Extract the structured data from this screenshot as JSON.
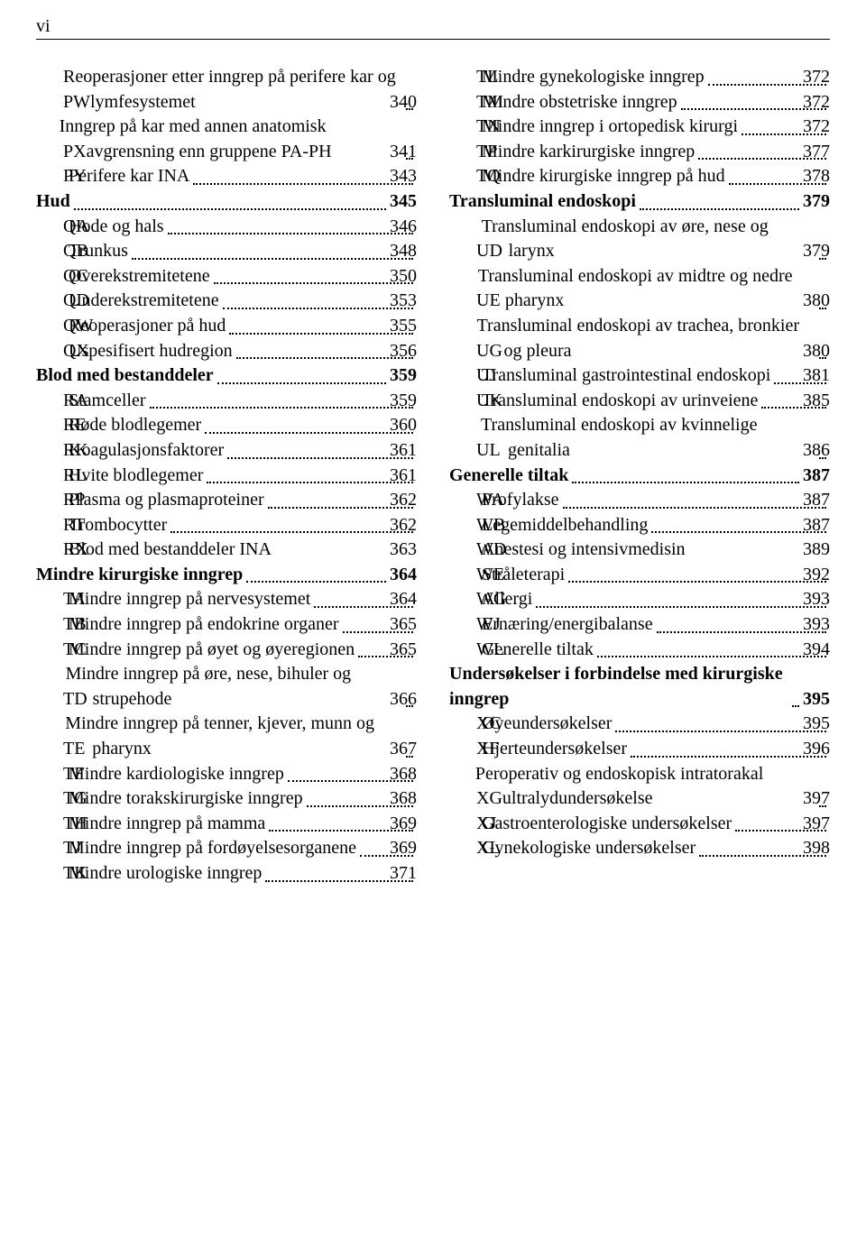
{
  "page_label": "vi",
  "left_column": [
    {
      "type": "sub",
      "code": "PW",
      "label": "Reoperasjoner etter inngrep på perifere kar og lymfesystemet",
      "page": "340"
    },
    {
      "type": "sub",
      "code": "PX",
      "label": "Inngrep på kar med annen anatomisk avgrensning enn gruppene PA-PH",
      "page": "341"
    },
    {
      "type": "sub",
      "code": "PY",
      "label": "Perifere kar INA",
      "page": "343"
    },
    {
      "type": "heading",
      "label": "Hud",
      "page": "345"
    },
    {
      "type": "sub",
      "code": "QA",
      "label": "Hode og hals",
      "page": "346"
    },
    {
      "type": "sub",
      "code": "QB",
      "label": "Trunkus",
      "page": "348"
    },
    {
      "type": "sub",
      "code": "QC",
      "label": "Overekstremitetene",
      "page": "350"
    },
    {
      "type": "sub",
      "code": "QD",
      "label": "Underekstremitetene",
      "page": "353"
    },
    {
      "type": "sub",
      "code": "QW",
      "label": "Reoperasjoner på hud",
      "page": "355"
    },
    {
      "type": "sub",
      "code": "QX",
      "label": "Uspesifisert hudregion",
      "page": "356"
    },
    {
      "type": "heading",
      "label": "Blod med bestanddeler",
      "page": "359"
    },
    {
      "type": "sub",
      "code": "RA",
      "label": "Stamceller",
      "page": "359"
    },
    {
      "type": "sub",
      "code": "RE",
      "label": "Røde blodlegemer",
      "page": "360"
    },
    {
      "type": "sub",
      "code": "RK",
      "label": "Koagulasjonsfaktorer",
      "page": "361"
    },
    {
      "type": "sub",
      "code": "RL",
      "label": "Hvite blodlegemer",
      "page": "361"
    },
    {
      "type": "sub",
      "code": "RP",
      "label": "Plasma og plasmaproteiner",
      "page": "362"
    },
    {
      "type": "sub",
      "code": "RT",
      "label": "Trombocytter",
      "page": "362"
    },
    {
      "type": "sub",
      "code": "RX",
      "label": "Blod med bestanddeler INA",
      "page": "363",
      "noleader": true
    },
    {
      "type": "heading",
      "label": "Mindre kirurgiske inngrep",
      "page": "364"
    },
    {
      "type": "sub",
      "code": "TA",
      "label": "Mindre inngrep på nervesystemet",
      "page": "364"
    },
    {
      "type": "sub",
      "code": "TB",
      "label": "Mindre inngrep på endokrine organer",
      "page": "365"
    },
    {
      "type": "sub",
      "code": "TC",
      "label": "Mindre inngrep på øyet og øyeregionen",
      "page": "365"
    },
    {
      "type": "sub",
      "code": "TD",
      "label": "Mindre inngrep på øre, nese, bihuler og strupehode",
      "page": "366"
    },
    {
      "type": "sub",
      "code": "TE",
      "label": "Mindre inngrep på tenner, kjever, munn og pharynx",
      "page": "367"
    },
    {
      "type": "sub",
      "code": "TF",
      "label": "Mindre kardiologiske inngrep",
      "page": "368"
    },
    {
      "type": "sub",
      "code": "TG",
      "label": "Mindre torakskirurgiske inngrep",
      "page": "368"
    },
    {
      "type": "sub",
      "code": "TH",
      "label": "Mindre inngrep på mamma",
      "page": "369"
    },
    {
      "type": "sub",
      "code": "TJ",
      "label": "Mindre inngrep på fordøyelsesorganene",
      "page": "369"
    },
    {
      "type": "sub",
      "code": "TK",
      "label": "Mindre urologiske inngrep",
      "page": "371"
    }
  ],
  "right_column": [
    {
      "type": "sub",
      "code": "TL",
      "label": "Mindre gynekologiske inngrep",
      "page": "372"
    },
    {
      "type": "sub",
      "code": "TM",
      "label": "Mindre obstetriske inngrep",
      "page": "372"
    },
    {
      "type": "sub",
      "code": "TN",
      "label": "Mindre inngrep i ortopedisk kirurgi",
      "page": "372"
    },
    {
      "type": "sub",
      "code": "TP",
      "label": "Mindre karkirurgiske inngrep",
      "page": "377"
    },
    {
      "type": "sub",
      "code": "TQ",
      "label": "Mindre kirurgiske inngrep på hud",
      "page": "378"
    },
    {
      "type": "heading",
      "label": "Transluminal endoskopi",
      "page": "379"
    },
    {
      "type": "sub",
      "code": "UD",
      "label": "Transluminal endoskopi av øre, nese og larynx",
      "page": "379"
    },
    {
      "type": "sub",
      "code": "UE",
      "label": "Transluminal endoskopi av midtre og nedre pharynx",
      "page": "380"
    },
    {
      "type": "sub",
      "code": "UG",
      "label": "Transluminal endoskopi av trachea, bronkier og pleura",
      "page": "380"
    },
    {
      "type": "sub",
      "code": "UJ",
      "label": "Transluminal gastrointestinal endoskopi",
      "page": "381"
    },
    {
      "type": "sub",
      "code": "UK",
      "label": "Transluminal endoskopi av urinveiene",
      "page": "385"
    },
    {
      "type": "sub",
      "code": "UL",
      "label": "Transluminal endoskopi av kvinnelige genitalia",
      "page": "386"
    },
    {
      "type": "heading",
      "label": "Generelle tiltak",
      "page": "387"
    },
    {
      "type": "sub",
      "code": "WA",
      "label": "Profylakse",
      "page": "387"
    },
    {
      "type": "sub",
      "code": "WB",
      "label": "Legemiddelbehandling",
      "page": "387"
    },
    {
      "type": "sub",
      "code": "WD",
      "label": "Anestesi og intensivmedisin",
      "page": "389",
      "noleader": true
    },
    {
      "type": "sub",
      "code": "WE",
      "label": "Stråleterapi",
      "page": "392"
    },
    {
      "type": "sub",
      "code": "WG",
      "label": "Allergi",
      "page": "393"
    },
    {
      "type": "sub",
      "code": "WJ",
      "label": "Ernæring/energibalanse",
      "page": "393"
    },
    {
      "type": "sub",
      "code": "WL",
      "label": "Generelle tiltak",
      "page": "394"
    },
    {
      "type": "heading",
      "label": "Undersøkelser i forbindelse med kirurgiske inngrep",
      "page": "395"
    },
    {
      "type": "sub",
      "code": "XC",
      "label": "Øyeundersøkelser",
      "page": "395"
    },
    {
      "type": "sub",
      "code": "XF",
      "label": "Hjerteundersøkelser",
      "page": "396"
    },
    {
      "type": "sub",
      "code": "XG",
      "label": "Peroperativ og endoskopisk intratorakal ultralydundersøkelse",
      "page": "397"
    },
    {
      "type": "sub",
      "code": "XJ",
      "label": "Gastroenterologiske undersøkelser",
      "page": "397"
    },
    {
      "type": "sub",
      "code": "XL",
      "label": "Gynekologiske undersøkelser",
      "page": "398"
    }
  ]
}
